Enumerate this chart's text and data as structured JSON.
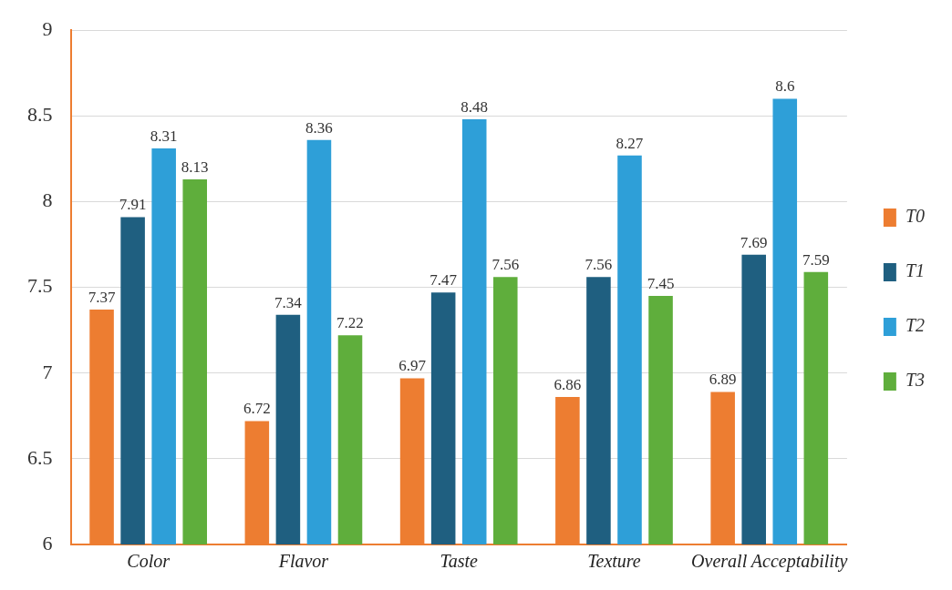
{
  "chart_data": {
    "type": "bar",
    "categories": [
      "Color",
      "Flavor",
      "Taste",
      "Texture",
      "Overall Acceptability"
    ],
    "series": [
      {
        "name": "T0",
        "color": "#ed7d31",
        "values": [
          7.37,
          6.72,
          6.97,
          6.86,
          6.89
        ]
      },
      {
        "name": "T1",
        "color": "#1f5f80",
        "values": [
          7.91,
          7.34,
          7.47,
          7.56,
          7.69
        ]
      },
      {
        "name": "T2",
        "color": "#2e9fd8",
        "values": [
          8.31,
          8.36,
          8.48,
          8.27,
          8.6
        ]
      },
      {
        "name": "T3",
        "color": "#5fae3c",
        "values": [
          8.13,
          7.22,
          7.56,
          7.45,
          7.59
        ]
      }
    ],
    "ylim": [
      6,
      9
    ],
    "yticks": [
      6,
      6.5,
      7,
      7.5,
      8,
      8.5,
      9
    ],
    "grid": "y",
    "legend": "right",
    "data_labels": true
  }
}
